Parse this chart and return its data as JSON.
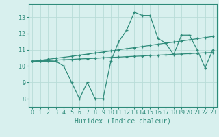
{
  "x": [
    0,
    1,
    2,
    3,
    4,
    5,
    6,
    7,
    8,
    9,
    10,
    11,
    12,
    13,
    14,
    15,
    16,
    17,
    18,
    19,
    20,
    21,
    22,
    23
  ],
  "y_main": [
    10.3,
    10.3,
    10.3,
    10.3,
    10.0,
    9.0,
    8.0,
    9.0,
    8.0,
    8.0,
    10.3,
    11.5,
    12.2,
    13.3,
    13.1,
    13.1,
    11.7,
    11.4,
    10.7,
    11.9,
    11.9,
    11.0,
    9.9,
    11.0
  ],
  "y_upper": [
    10.3,
    10.35,
    10.42,
    10.48,
    10.54,
    10.6,
    10.67,
    10.73,
    10.8,
    10.86,
    10.93,
    11.0,
    11.07,
    11.13,
    11.2,
    11.27,
    11.34,
    11.41,
    11.47,
    11.54,
    11.61,
    11.68,
    11.75,
    11.82
  ],
  "y_lower": [
    10.3,
    10.32,
    10.34,
    10.37,
    10.39,
    10.41,
    10.44,
    10.46,
    10.48,
    10.51,
    10.53,
    10.55,
    10.58,
    10.6,
    10.62,
    10.65,
    10.67,
    10.69,
    10.72,
    10.74,
    10.76,
    10.79,
    10.81,
    10.83
  ],
  "line_color": "#2e8b7a",
  "bg_color": "#d8f0ee",
  "grid_color": "#b8dcd8",
  "xlabel": "Humidex (Indice chaleur)",
  "ylim": [
    7.5,
    13.8
  ],
  "xlim": [
    -0.5,
    23.5
  ],
  "yticks": [
    8,
    9,
    10,
    11,
    12,
    13
  ],
  "xticks": [
    0,
    1,
    2,
    3,
    4,
    5,
    6,
    7,
    8,
    9,
    10,
    11,
    12,
    13,
    14,
    15,
    16,
    17,
    18,
    19,
    20,
    21,
    22,
    23
  ],
  "marker": "+",
  "markersize": 3,
  "linewidth": 0.9,
  "tick_fontsize": 6,
  "xlabel_fontsize": 7
}
